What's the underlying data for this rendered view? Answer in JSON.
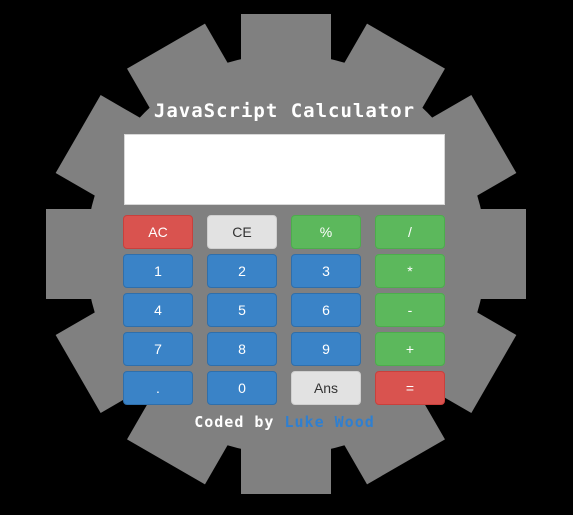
{
  "app": {
    "title": "JavaScript Calculator",
    "display_value": ""
  },
  "colors": {
    "background": "#000000",
    "gear": "#808080",
    "red": "#d9534f",
    "green": "#5cb85c",
    "blue": "#3a83c7",
    "grey": "#e2e2e2",
    "author_link": "#2f7fd0"
  },
  "keypad": {
    "rows": [
      [
        {
          "label": "AC",
          "name": "ac-button"
        },
        {
          "label": "CE",
          "name": "ce-button"
        },
        {
          "label": "%",
          "name": "percent-button"
        },
        {
          "label": "/",
          "name": "divide-button"
        }
      ],
      [
        {
          "label": "1",
          "name": "digit-1-button"
        },
        {
          "label": "2",
          "name": "digit-2-button"
        },
        {
          "label": "3",
          "name": "digit-3-button"
        },
        {
          "label": "*",
          "name": "multiply-button"
        }
      ],
      [
        {
          "label": "4",
          "name": "digit-4-button"
        },
        {
          "label": "5",
          "name": "digit-5-button"
        },
        {
          "label": "6",
          "name": "digit-6-button"
        },
        {
          "label": "-",
          "name": "subtract-button"
        }
      ],
      [
        {
          "label": "7",
          "name": "digit-7-button"
        },
        {
          "label": "8",
          "name": "digit-8-button"
        },
        {
          "label": "9",
          "name": "digit-9-button"
        },
        {
          "label": "+",
          "name": "add-button"
        }
      ],
      [
        {
          "label": ".",
          "name": "decimal-button"
        },
        {
          "label": "0",
          "name": "digit-0-button"
        },
        {
          "label": "Ans",
          "name": "ans-button"
        },
        {
          "label": "=",
          "name": "equals-button"
        }
      ]
    ]
  },
  "footer": {
    "prefix": "Coded by",
    "author": "Luke Wood"
  }
}
